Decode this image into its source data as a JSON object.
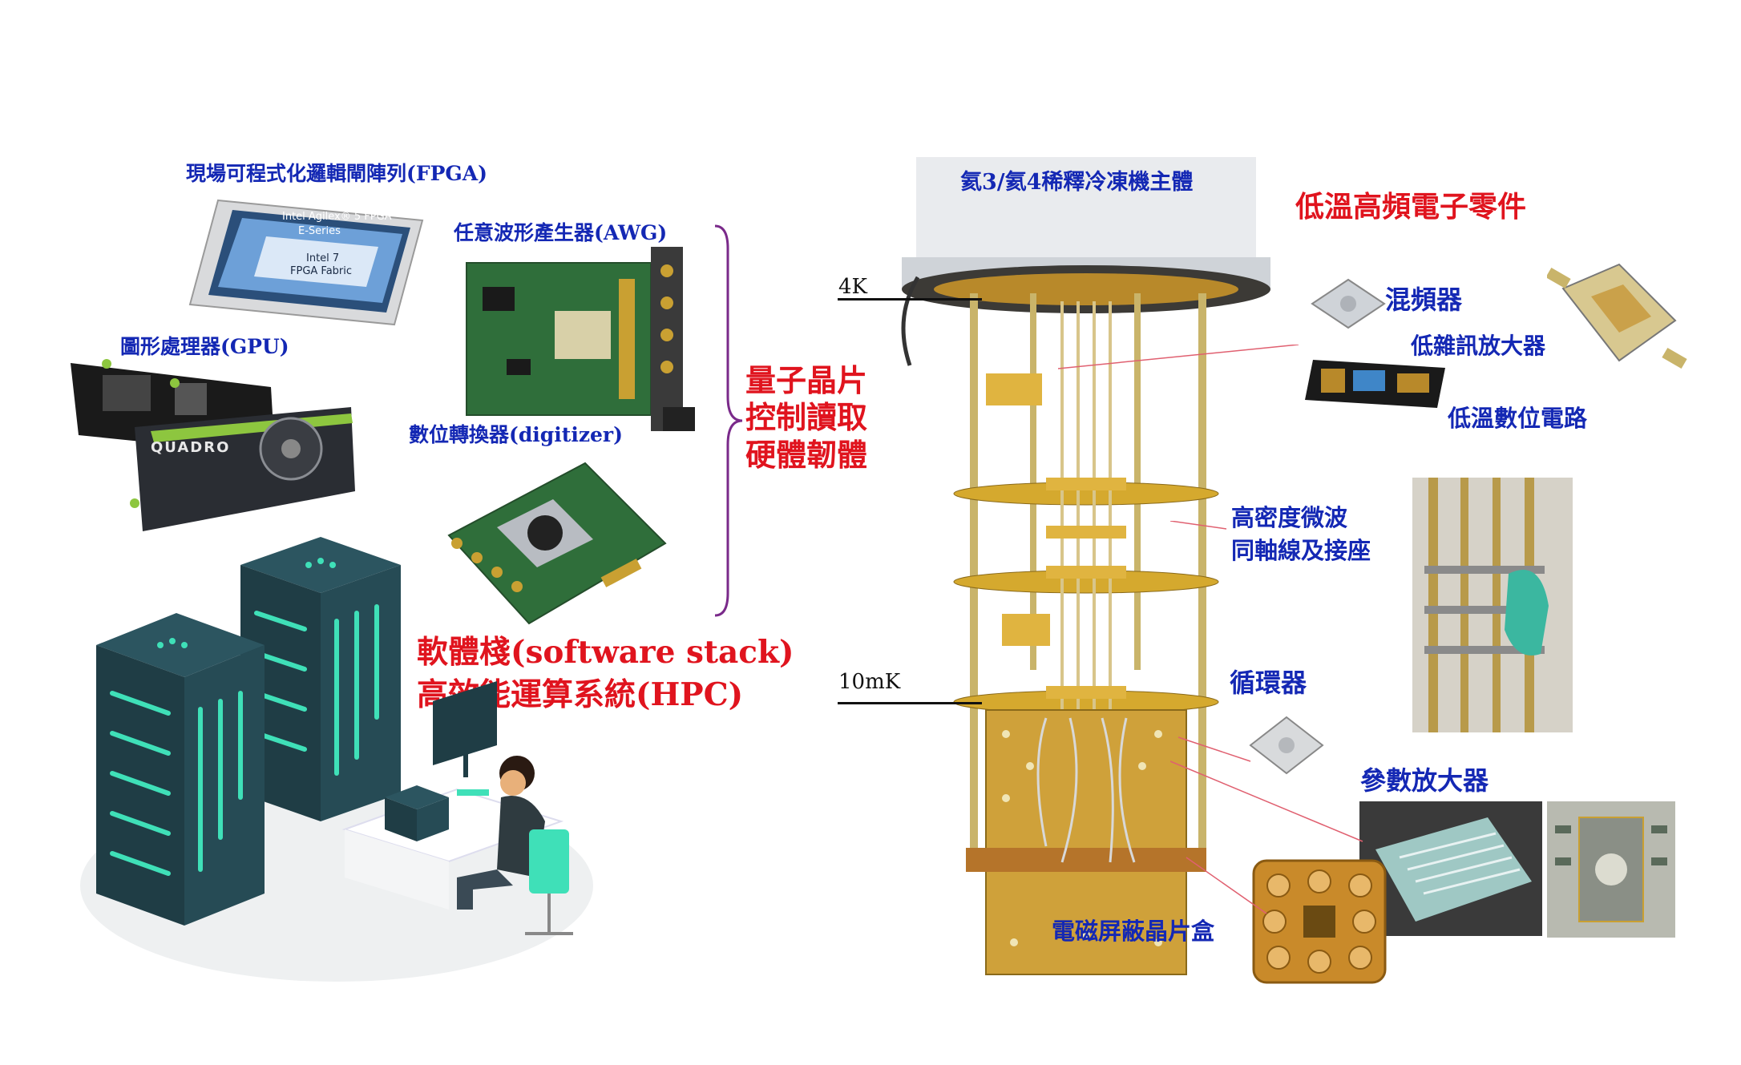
{
  "labels": {
    "fpga": "現場可程式化邏輯閘陣列(FPGA)",
    "fpga_chip_line1": "Intel Agilex® 5 FPGA",
    "fpga_chip_line2": "E-Series",
    "fpga_chip_line3": "Intel 7",
    "fpga_chip_line4": "FPGA Fabric",
    "gpu": "圖形處理器(GPU)",
    "gpu_brand": "QUADRO",
    "awg": "任意波形產生器(AWG)",
    "digitizer": "數位轉換器(digitizer)",
    "control_line1": "量子晶片",
    "control_line2": "控制讀取",
    "control_line3": "硬體韌體",
    "software_stack": "軟體棧(software stack)",
    "hpc": "高效能運算系統(HPC)",
    "fridge_body": "氦3/氦4稀釋冷凍機主體",
    "cryo_electronics": "低溫高頻電子零件",
    "mixer": "混頻器",
    "lna": "低雜訊放大器",
    "cryo_cmos": "低溫數位電路",
    "coax_line1": "高密度微波",
    "coax_line2": "同軸線及接座",
    "circulator": "循環器",
    "paramp": "參數放大器",
    "sample_box": "電磁屏蔽晶片盒",
    "stage_4k": "4K",
    "stage_10mk": "10mK"
  },
  "colors": {
    "label_blue": "#1428b4",
    "label_red": "#e0141e",
    "server_dark": "#1f3d45",
    "server_accent": "#3fe0b8",
    "gold": "#c9a032",
    "pcb_green": "#2f6e3a"
  }
}
